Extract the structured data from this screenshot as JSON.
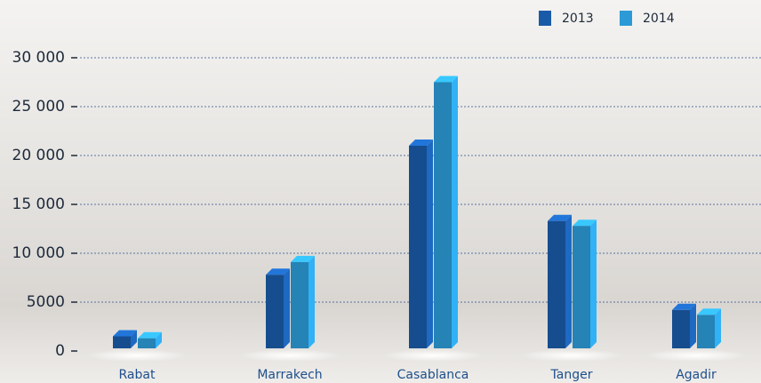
{
  "chart_data": {
    "type": "bar",
    "categories": [
      "Rabat",
      "Marrakech",
      "Casablanca",
      "Tanger",
      "Agadir"
    ],
    "series": [
      {
        "name": "2013",
        "color": "#1a5ba8",
        "values": [
          1500,
          7800,
          21000,
          13300,
          4200
        ]
      },
      {
        "name": "2014",
        "color": "#2b9ad6",
        "values": [
          1300,
          9100,
          27500,
          12800,
          3700
        ]
      }
    ],
    "ylim": [
      0,
      30000
    ],
    "yticks": [
      0,
      5000,
      {
        "value": 10000,
        "label": "10 000"
      },
      {
        "value": 15000,
        "label": "15 000"
      },
      {
        "value": 20000,
        "label": "20 000"
      },
      {
        "value": 25000,
        "label": "25 000"
      },
      {
        "value": 30000,
        "label": "30 000"
      }
    ],
    "grid": true
  }
}
